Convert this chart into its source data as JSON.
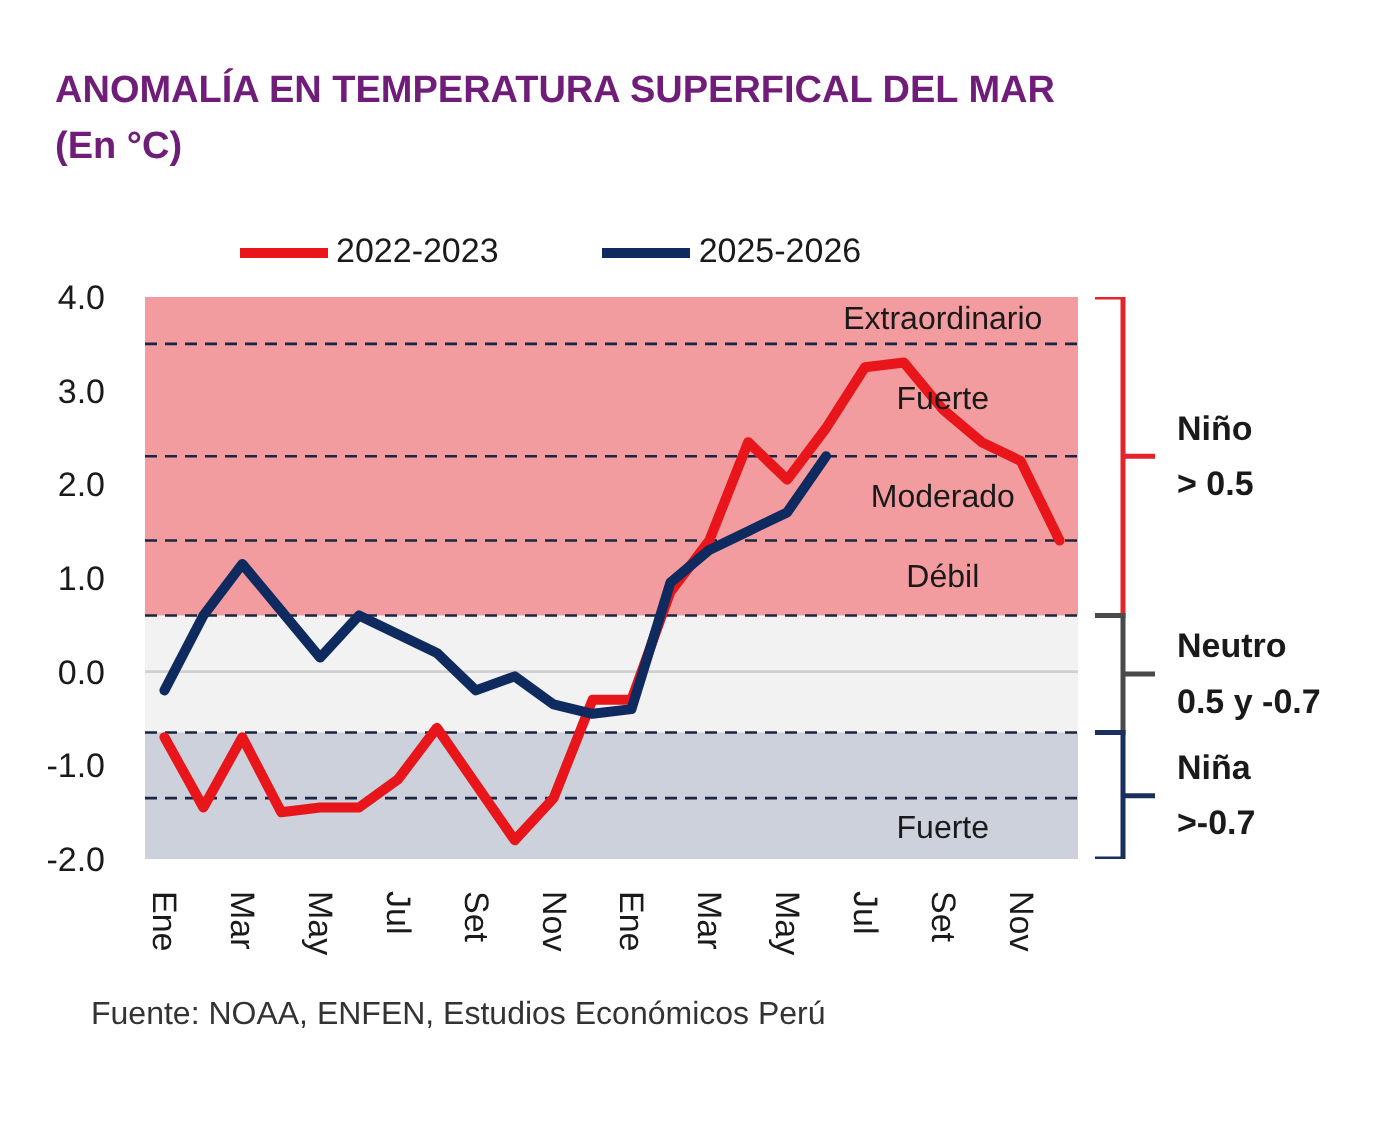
{
  "chart_data": {
    "type": "line",
    "title": "ANOMALÍA EN TEMPERATURA SUPERFICAL DEL MAR",
    "subtitle": "(En °C)",
    "categories": [
      "Ene",
      null,
      "Mar",
      null,
      "May",
      null,
      "Jul",
      null,
      "Set",
      null,
      "Nov",
      null,
      "Ene",
      null,
      "Mar",
      null,
      "May",
      null,
      "Jul",
      null,
      "Set",
      null,
      "Nov",
      null
    ],
    "series": [
      {
        "name": "2022-2023",
        "color": "#e8161b",
        "values": [
          -0.7,
          -1.45,
          -0.7,
          -1.5,
          -1.45,
          -1.45,
          -1.15,
          -0.6,
          -1.2,
          -1.8,
          -1.35,
          -0.3,
          -0.3,
          0.85,
          1.4,
          2.45,
          2.05,
          2.6,
          3.25,
          3.3,
          2.8,
          2.45,
          2.25,
          1.4
        ]
      },
      {
        "name": "2025-2026",
        "color": "#0f2a5f",
        "values": [
          -0.2,
          0.6,
          1.15,
          0.65,
          0.15,
          0.6,
          0.4,
          0.2,
          -0.2,
          -0.05,
          -0.35,
          -0.45,
          -0.4,
          0.95,
          1.3,
          1.5,
          1.7,
          2.3,
          null,
          null,
          null,
          null,
          null,
          null
        ]
      }
    ],
    "ylim": [
      -2,
      4
    ],
    "yticks": [
      {
        "value": -2,
        "label": "-2.0"
      },
      {
        "value": -1,
        "label": "-1.0"
      },
      {
        "value": 0,
        "label": "0.0"
      },
      {
        "value": 1,
        "label": "1.0"
      },
      {
        "value": 2,
        "label": "2.0"
      },
      {
        "value": 3,
        "label": "3.0"
      },
      {
        "value": 4,
        "label": "4.0"
      }
    ],
    "legend": "top",
    "ref_lines": [
      {
        "axis": "y",
        "value": 0,
        "color": "#d0d0d0",
        "line_style": "solid"
      },
      {
        "axis": "y",
        "value": 3.5,
        "label": "Extraordinario",
        "color": "#1b2440",
        "line_style": "dashed"
      },
      {
        "axis": "y",
        "value": 2.3,
        "label": "Fuerte",
        "color": "#1b2440",
        "line_style": "dashed"
      },
      {
        "axis": "y",
        "value": 1.4,
        "label": "Moderado",
        "color": "#1b2440",
        "line_style": "dashed"
      },
      {
        "axis": "y",
        "value": 0.6,
        "label": "Débil",
        "color": "#1b2440",
        "line_style": "dashed"
      },
      {
        "axis": "y",
        "value": -0.65,
        "color": "#1b2440",
        "line_style": "dashed"
      },
      {
        "axis": "y",
        "value": -1.35,
        "label": "Fuerte",
        "color": "#1b2440",
        "line_style": "dashed"
      }
    ],
    "bands": [
      {
        "axis": "y",
        "from": 0.6,
        "to": 4,
        "label": "Niño\n> 0.5",
        "color": "#e4242b"
      },
      {
        "axis": "y",
        "from": -0.65,
        "to": 0.6,
        "label": "Neutro\n0.5 y -0.7",
        "color": "#4a4a4a"
      },
      {
        "axis": "y",
        "from": -2,
        "to": -0.65,
        "label": "Niña\n>-0.7",
        "color": "#1b2f5f"
      }
    ],
    "annotations": [
      "Fuente: NOAA, ENFEN, Estudios Económicos Perú"
    ]
  }
}
